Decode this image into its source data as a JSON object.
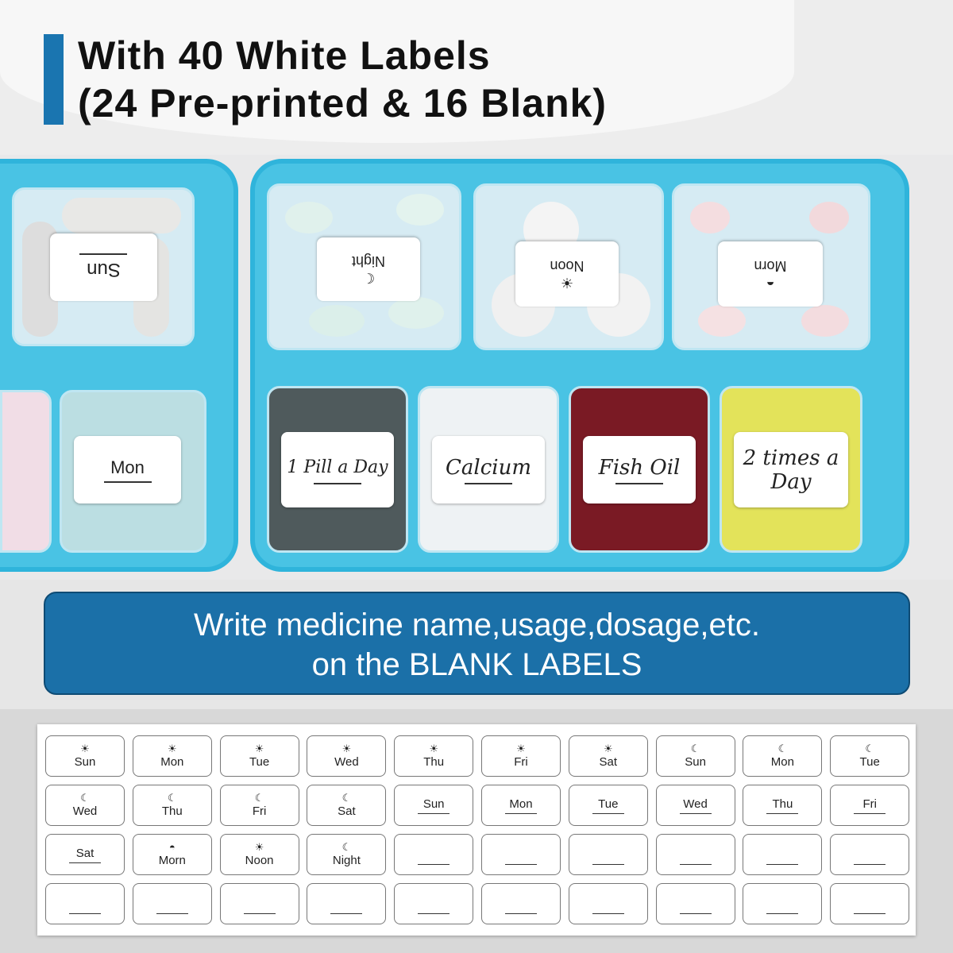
{
  "title": {
    "line1": "With 40 White Labels",
    "line2": "(24 Pre-printed & 16 Blank)"
  },
  "colors": {
    "accent_blue": "#1a75b0",
    "case_blue": "#49c3e4",
    "banner": "#1b70a8"
  },
  "pillbox": {
    "left_case": [
      {
        "label": "Sun",
        "upside_down": true
      },
      {
        "label": "Mon",
        "upside_down": false
      }
    ],
    "right_case_top": [
      {
        "label": "Night",
        "icon": "moon-icon"
      },
      {
        "label": "Noon",
        "icon": "sun-icon"
      },
      {
        "label": "Morn",
        "icon": "sunrise-icon"
      }
    ],
    "right_case_bottom": [
      {
        "label": "1 Pill a Day"
      },
      {
        "label": "Calcium"
      },
      {
        "label": "Fish Oil"
      },
      {
        "label": "2 times a Day"
      }
    ]
  },
  "banner": {
    "line1": "Write medicine name,usage,dosage,etc.",
    "line2": "on the BLANK LABELS"
  },
  "label_sheet": [
    [
      {
        "t": "Sun",
        "i": "sun"
      },
      {
        "t": "Mon",
        "i": "sun"
      },
      {
        "t": "Tue",
        "i": "sun"
      },
      {
        "t": "Wed",
        "i": "sun"
      },
      {
        "t": "Thu",
        "i": "sun"
      },
      {
        "t": "Fri",
        "i": "sun"
      },
      {
        "t": "Sat",
        "i": "sun"
      },
      {
        "t": "Sun",
        "i": "moon"
      },
      {
        "t": "Mon",
        "i": "moon"
      },
      {
        "t": "Tue",
        "i": "moon"
      }
    ],
    [
      {
        "t": "Wed",
        "i": "moon"
      },
      {
        "t": "Thu",
        "i": "moon"
      },
      {
        "t": "Fri",
        "i": "moon"
      },
      {
        "t": "Sat",
        "i": "moon"
      },
      {
        "t": "Sun",
        "i": "line"
      },
      {
        "t": "Mon",
        "i": "line"
      },
      {
        "t": "Tue",
        "i": "line"
      },
      {
        "t": "Wed",
        "i": "line"
      },
      {
        "t": "Thu",
        "i": "line"
      },
      {
        "t": "Fri",
        "i": "line"
      }
    ],
    [
      {
        "t": "Sat",
        "i": "line"
      },
      {
        "t": "Morn",
        "i": "sunrise"
      },
      {
        "t": "Noon",
        "i": "sun"
      },
      {
        "t": "Night",
        "i": "moon"
      },
      {
        "t": "",
        "i": "blank"
      },
      {
        "t": "",
        "i": "blank"
      },
      {
        "t": "",
        "i": "blank"
      },
      {
        "t": "",
        "i": "blank"
      },
      {
        "t": "",
        "i": "blank"
      },
      {
        "t": "",
        "i": "blank"
      }
    ],
    [
      {
        "t": "",
        "i": "blank"
      },
      {
        "t": "",
        "i": "blank"
      },
      {
        "t": "",
        "i": "blank"
      },
      {
        "t": "",
        "i": "blank"
      },
      {
        "t": "",
        "i": "blank"
      },
      {
        "t": "",
        "i": "blank"
      },
      {
        "t": "",
        "i": "blank"
      },
      {
        "t": "",
        "i": "blank"
      },
      {
        "t": "",
        "i": "blank"
      },
      {
        "t": "",
        "i": "blank"
      }
    ]
  ]
}
